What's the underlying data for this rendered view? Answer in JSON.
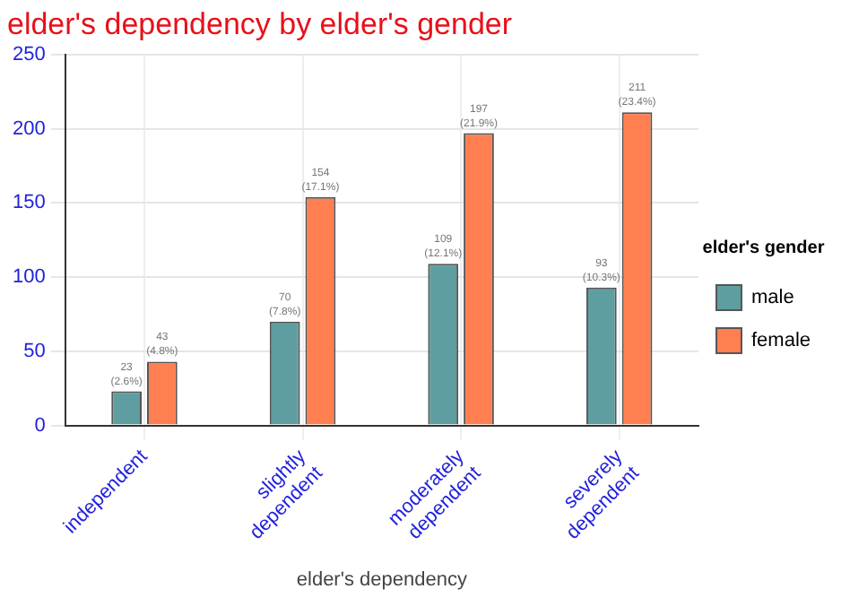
{
  "chart_data": {
    "type": "bar",
    "title": "elder's dependency by elder's gender",
    "xlabel": "elder's dependency",
    "legend_title": "elder's gender",
    "categories": [
      "independent",
      "slightly dependent",
      "moderately dependent",
      "severely dependent"
    ],
    "series": [
      {
        "name": "male",
        "color": "#5f9ea0",
        "values": [
          23,
          70,
          109,
          93
        ],
        "value_labels": [
          "23 (2.6%)",
          "70 (7.8%)",
          "109 (12.1%)",
          "93 (10.3%)"
        ]
      },
      {
        "name": "female",
        "color": "#ff7f50",
        "values": [
          43,
          154,
          197,
          211
        ],
        "value_labels": [
          "43 (4.8%)",
          "154 (17.1%)",
          "197 (21.9%)",
          "211 (23.4%)"
        ]
      }
    ],
    "ylim": [
      0,
      250
    ],
    "yticks": [
      0,
      50,
      100,
      150,
      200,
      250
    ],
    "grid": true,
    "legend": "right"
  }
}
